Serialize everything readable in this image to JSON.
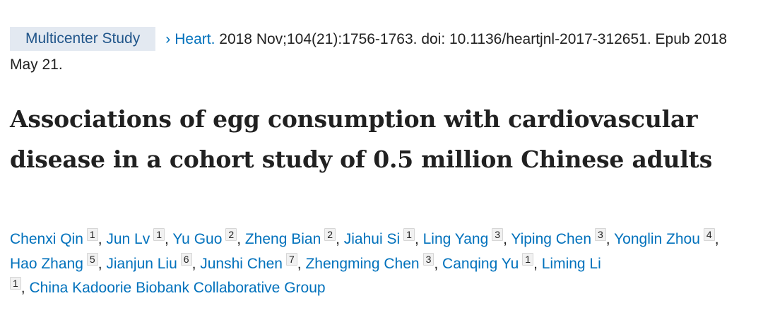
{
  "header": {
    "publication_type": "Multicenter Study",
    "chevron": "›",
    "journal": "Heart.",
    "citation": " 2018 Nov;104(21):1756-1763. doi: 10.1136/heartjnl-2017-312651. Epub 2018 May 21."
  },
  "article": {
    "title": "Associations of egg consumption with cardiovascular disease in a cohort study of 0.5 million Chinese adults"
  },
  "authors": [
    {
      "name": "Chenxi Qin",
      "aff": "1"
    },
    {
      "name": "Jun Lv",
      "aff": "1"
    },
    {
      "name": "Yu Guo",
      "aff": "2"
    },
    {
      "name": "Zheng Bian",
      "aff": "2"
    },
    {
      "name": "Jiahui Si",
      "aff": "1"
    },
    {
      "name": "Ling Yang",
      "aff": "3"
    },
    {
      "name": "Yiping Chen",
      "aff": "3"
    },
    {
      "name": "Yonglin Zhou",
      "aff": "4"
    },
    {
      "name": "Hao Zhang",
      "aff": "5"
    },
    {
      "name": "Jianjun Liu",
      "aff": "6"
    },
    {
      "name": "Junshi Chen",
      "aff": "7"
    },
    {
      "name": "Zhengming Chen",
      "aff": "3"
    },
    {
      "name": "Canqing Yu",
      "aff": "1"
    },
    {
      "name": "Liming Li",
      "aff": "1"
    },
    {
      "name": "China Kadoorie Biobank Collaborative Group",
      "aff": null
    }
  ],
  "colors": {
    "link": "#0071bc",
    "badge_bg": "#e3e9f1",
    "badge_text": "#20558a",
    "text": "#212121"
  }
}
